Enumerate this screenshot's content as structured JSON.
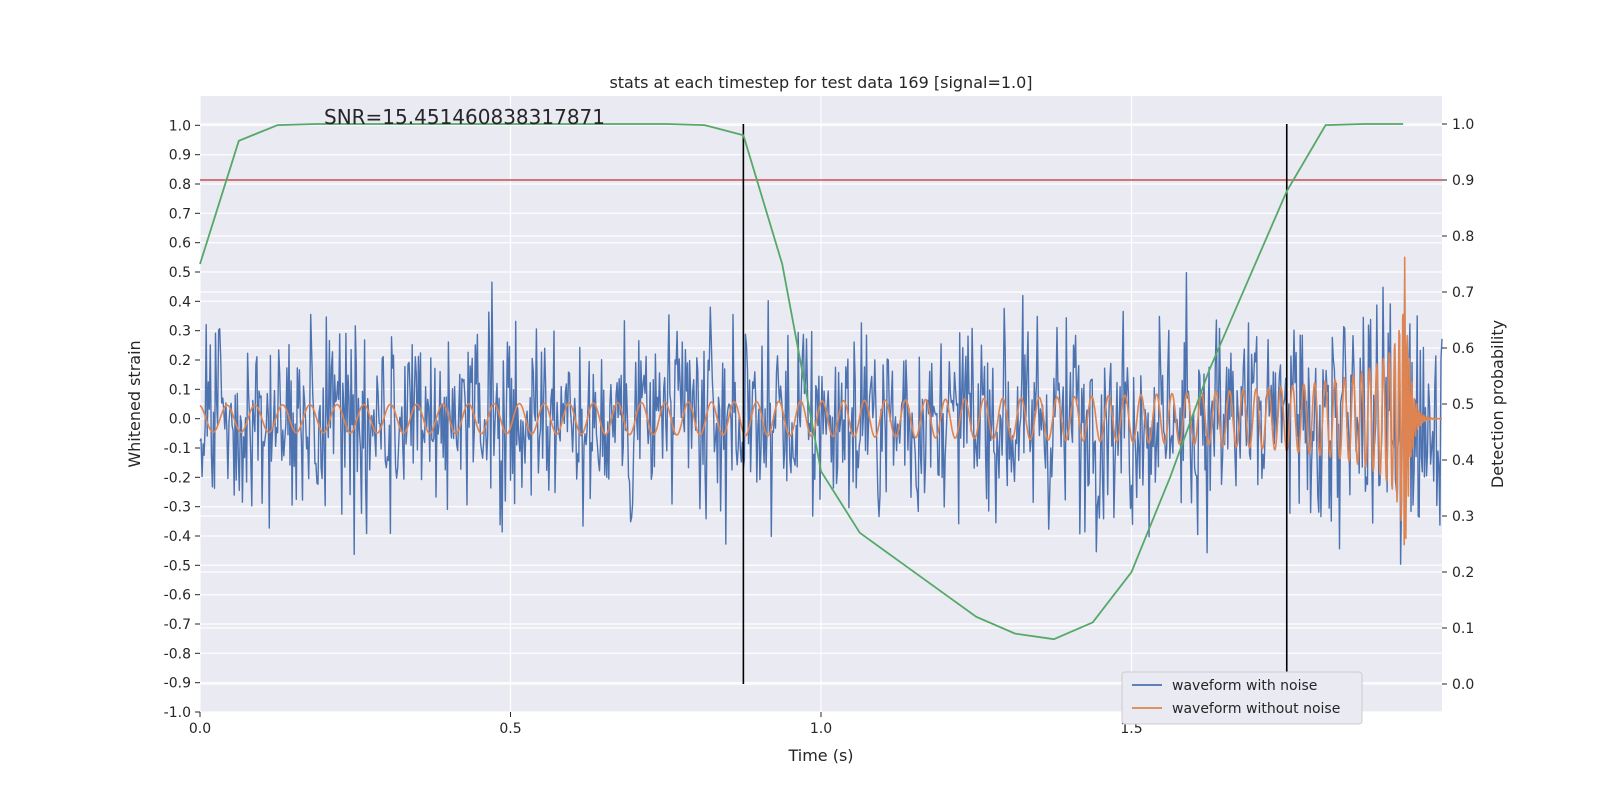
{
  "chart_data": {
    "type": "line",
    "title": "stats at each timestep for test data 169 [signal=1.0]",
    "annotation": "SNR=15.451460838317871",
    "xlabel": "Time (s)",
    "ylabel_left": "Whitened strain",
    "ylabel_right": "Detection probability",
    "xlim": [
      0.0,
      2.0
    ],
    "ylim_left": [
      -1.0,
      1.1
    ],
    "ylim_right": [
      -0.05,
      1.05
    ],
    "x_ticks": [
      "0.0",
      "0.5",
      "1.0",
      "1.5"
    ],
    "x_tick_values": [
      0.0,
      0.5,
      1.0,
      1.5
    ],
    "y_left_ticks": [
      "-1.0",
      "-0.9",
      "-0.8",
      "-0.7",
      "-0.6",
      "-0.5",
      "-0.4",
      "-0.3",
      "-0.2",
      "-0.1",
      "0.0",
      "0.1",
      "0.2",
      "0.3",
      "0.4",
      "0.5",
      "0.6",
      "0.7",
      "0.8",
      "0.9",
      "1.0"
    ],
    "y_left_tick_values": [
      -1.0,
      -0.9,
      -0.8,
      -0.7,
      -0.6,
      -0.5,
      -0.4,
      -0.3,
      -0.2,
      -0.1,
      0.0,
      0.1,
      0.2,
      0.3,
      0.4,
      0.5,
      0.6,
      0.7,
      0.8,
      0.9,
      1.0
    ],
    "y_right_ticks": [
      "0.0",
      "0.1",
      "0.2",
      "0.3",
      "0.4",
      "0.5",
      "0.6",
      "0.7",
      "0.8",
      "0.9",
      "1.0"
    ],
    "y_right_tick_values": [
      0.0,
      0.1,
      0.2,
      0.3,
      0.4,
      0.5,
      0.6,
      0.7,
      0.8,
      0.9,
      1.0
    ],
    "threshold_right": 0.9,
    "vertical_lines_x": [
      0.875,
      1.75
    ],
    "vertical_lines_range_right": [
      0.0,
      1.0
    ],
    "detection_probability": {
      "x": [
        0.0,
        0.0625,
        0.125,
        0.1875,
        0.25,
        0.3125,
        0.375,
        0.4375,
        0.5,
        0.5625,
        0.625,
        0.6875,
        0.75,
        0.8125,
        0.875,
        0.9375,
        1.0,
        1.0625,
        1.125,
        1.1875,
        1.25,
        1.3125,
        1.375,
        1.4375,
        1.5,
        1.5625,
        1.625,
        1.6875,
        1.75,
        1.8125,
        1.875,
        1.9375
      ],
      "y": [
        0.75,
        0.97,
        0.998,
        1.0,
        1.0,
        1.0,
        1.0,
        1.0,
        1.0,
        1.0,
        1.0,
        1.0,
        1.0,
        0.998,
        0.98,
        0.75,
        0.38,
        0.27,
        0.22,
        0.17,
        0.12,
        0.09,
        0.08,
        0.11,
        0.2,
        0.37,
        0.56,
        0.72,
        0.88,
        0.998,
        1.0,
        1.0
      ]
    },
    "series": [
      {
        "name": "waveform with noise",
        "color": "#4c72b0",
        "axis": "left",
        "generator": "noise",
        "amplitude": 0.23,
        "n_points": 1200
      },
      {
        "name": "waveform without noise",
        "color": "#dd8452",
        "axis": "left",
        "generator": "chirp",
        "merger_time": 1.94,
        "n_points": 2400
      },
      {
        "name": "detection probability",
        "color": "#55a868",
        "axis": "right",
        "in_legend": false
      },
      {
        "name": "threshold",
        "color": "#c44e52",
        "axis": "right",
        "in_legend": false
      }
    ],
    "legend": {
      "placement": "lower-right",
      "entries": [
        "waveform with noise",
        "waveform without noise"
      ]
    }
  }
}
